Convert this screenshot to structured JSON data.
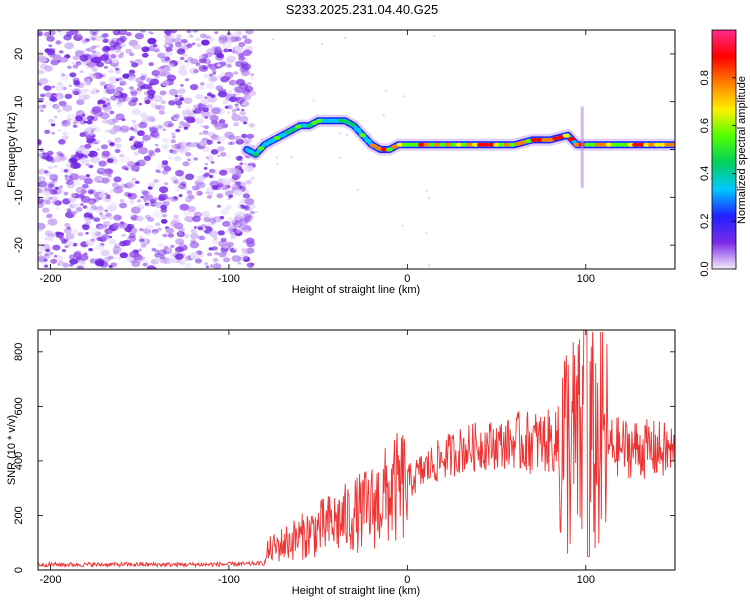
{
  "title": "S233.2025.231.04.40.G25",
  "spectrogram": {
    "type": "heatmap",
    "xlabel": "Height of straight line (km)",
    "ylabel": "Frequency (Hz)",
    "xlim": [
      -207,
      150
    ],
    "ylim": [
      -25,
      25
    ],
    "xticks": [
      -200,
      -100,
      0,
      100
    ],
    "yticks": [
      20,
      10,
      0,
      -10,
      -20
    ],
    "noise_region_x": [
      -207,
      -90
    ],
    "track": {
      "x": [
        -90,
        -85,
        -80,
        -75,
        -70,
        -65,
        -60,
        -55,
        -50,
        -45,
        -40,
        -35,
        -30,
        -25,
        -20,
        -15,
        -10,
        -5,
        0,
        10,
        20,
        30,
        40,
        50,
        60,
        70,
        80,
        90,
        95,
        100,
        110,
        120,
        130,
        140,
        150
      ],
      "y": [
        0,
        -1,
        1,
        2,
        3,
        4,
        5,
        5,
        6,
        6,
        6,
        6,
        5,
        3,
        1,
        0,
        0,
        1,
        1,
        1,
        1,
        1,
        1,
        1,
        1,
        2,
        2,
        3,
        1,
        1,
        1,
        1,
        1,
        1,
        1
      ]
    },
    "colorbar": {
      "label": "Normalized spectral amplitude",
      "range": [
        0,
        1
      ],
      "ticks": [
        "0.0",
        "0.2",
        "0.4",
        "0.6",
        "0.8"
      ],
      "colors": [
        "#f4ecfb",
        "#7b2be8",
        "#2020ff",
        "#00c8ff",
        "#00d060",
        "#50ff00",
        "#fff000",
        "#ff8000",
        "#ff0000",
        "#ff2b8a"
      ]
    }
  },
  "chart_data": {
    "type": "line",
    "title": "S233.2025.231.04.40.G25",
    "xlabel": "Height of straight line (km)",
    "ylabel": "SNR (10 * v/v)",
    "xlim": [
      -207,
      150
    ],
    "ylim": [
      0,
      880
    ],
    "xticks": [
      -200,
      -100,
      0,
      100
    ],
    "yticks": [
      0,
      200,
      400,
      600,
      800
    ],
    "line_color": "#ee3333",
    "series": [
      {
        "name": "SNR",
        "x": [
          -207,
          -180,
          -150,
          -120,
          -90,
          -80,
          -78,
          -70,
          -60,
          -50,
          -40,
          -30,
          -20,
          -10,
          0,
          10,
          20,
          30,
          40,
          50,
          60,
          70,
          80,
          90,
          95,
          100,
          102,
          105,
          110,
          120,
          130,
          140,
          150
        ],
        "y": [
          20,
          20,
          20,
          20,
          22,
          25,
          70,
          95,
          120,
          150,
          175,
          200,
          230,
          280,
          320,
          370,
          410,
          440,
          455,
          460,
          465,
          470,
          470,
          460,
          450,
          440,
          450,
          460,
          455,
          450,
          445,
          440,
          430
        ]
      }
    ]
  }
}
